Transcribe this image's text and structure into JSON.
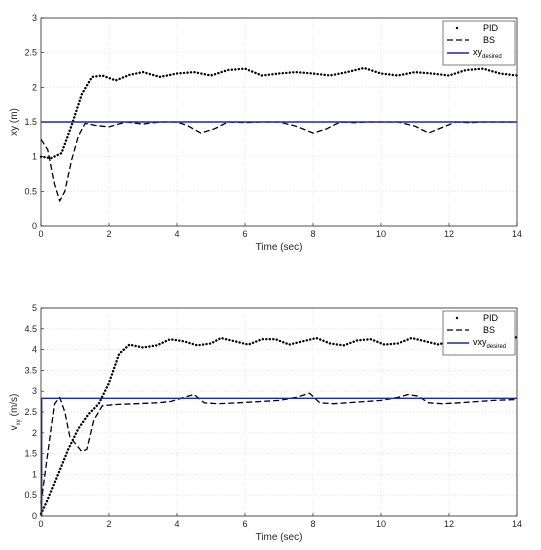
{
  "chart_data": [
    {
      "type": "line",
      "xlabel": "Time (sec)",
      "ylabel": "xy (m)",
      "xlim": [
        0,
        14
      ],
      "ylim": [
        0,
        3
      ],
      "xticks": [
        "0",
        "2",
        "4",
        "6",
        "8",
        "10",
        "12",
        "14"
      ],
      "yticks": [
        "0",
        "0.5",
        "1",
        "1.5",
        "2",
        "2.5",
        "3"
      ],
      "grid": true,
      "legend_position": "top-right",
      "legend": {
        "pid": "PID",
        "bs": "BS",
        "desired_main": "xy",
        "desired_sub": "desired"
      },
      "series": [
        {
          "name": "PID",
          "style": "dotted",
          "color": "#000000",
          "x": [
            0,
            0.3,
            0.6,
            0.9,
            1.2,
            1.5,
            1.8,
            2.2,
            2.6,
            3.0,
            3.5,
            4.0,
            4.5,
            5.0,
            5.5,
            6.0,
            6.5,
            7.0,
            7.5,
            8.0,
            8.5,
            9.0,
            9.5,
            10.0,
            10.5,
            11.0,
            11.5,
            12.0,
            12.5,
            13.0,
            13.5,
            14.0
          ],
          "y": [
            1.0,
            0.98,
            1.05,
            1.45,
            1.9,
            2.15,
            2.17,
            2.1,
            2.18,
            2.22,
            2.15,
            2.2,
            2.22,
            2.17,
            2.25,
            2.27,
            2.17,
            2.2,
            2.22,
            2.2,
            2.17,
            2.22,
            2.28,
            2.2,
            2.17,
            2.22,
            2.2,
            2.17,
            2.25,
            2.27,
            2.2,
            2.17
          ]
        },
        {
          "name": "BS",
          "style": "dashed",
          "color": "#000000",
          "x": [
            0,
            0.2,
            0.4,
            0.55,
            0.7,
            0.9,
            1.1,
            1.3,
            1.6,
            2.0,
            2.5,
            3.0,
            3.5,
            4.0,
            4.3,
            4.7,
            5.1,
            5.5,
            6.0,
            6.5,
            7.0,
            7.5,
            8.0,
            8.4,
            8.8,
            9.2,
            9.6,
            10.0,
            10.5,
            11.0,
            11.4,
            11.8,
            12.2,
            12.6,
            13.0,
            13.5,
            14.0
          ],
          "y": [
            1.25,
            1.1,
            0.6,
            0.36,
            0.5,
            0.95,
            1.3,
            1.48,
            1.45,
            1.43,
            1.5,
            1.47,
            1.5,
            1.5,
            1.45,
            1.34,
            1.4,
            1.5,
            1.49,
            1.5,
            1.5,
            1.44,
            1.34,
            1.4,
            1.5,
            1.49,
            1.5,
            1.5,
            1.5,
            1.44,
            1.34,
            1.42,
            1.5,
            1.49,
            1.5,
            1.5,
            1.5
          ]
        },
        {
          "name": "xy_desired",
          "style": "solid",
          "color": "#1f2a9c",
          "x": [
            0,
            14
          ],
          "y": [
            1.5,
            1.5
          ]
        }
      ]
    },
    {
      "type": "line",
      "xlabel": "Time (sec)",
      "ylabel_main": "v",
      "ylabel_sub": "xy",
      "ylabel_unit": "(m/s)",
      "xlim": [
        0,
        14
      ],
      "ylim": [
        0,
        5
      ],
      "xticks": [
        "0",
        "2",
        "4",
        "6",
        "8",
        "10",
        "12",
        "14"
      ],
      "yticks": [
        "0",
        "0.5",
        "1",
        "1.5",
        "2",
        "2.5",
        "3",
        "3.5",
        "4",
        "4.5",
        "5"
      ],
      "grid": true,
      "legend_position": "top-right",
      "legend": {
        "pid": "PID",
        "bs": "BS",
        "desired_main": "vxy",
        "desired_sub": "desired"
      },
      "series": [
        {
          "name": "PID",
          "style": "dotted",
          "color": "#000000",
          "x": [
            0,
            0.2,
            0.5,
            0.8,
            1.1,
            1.4,
            1.7,
            2.0,
            2.3,
            2.6,
            3.0,
            3.4,
            3.8,
            4.2,
            4.6,
            5.0,
            5.3,
            5.7,
            6.1,
            6.5,
            6.9,
            7.3,
            7.7,
            8.1,
            8.5,
            8.9,
            9.3,
            9.7,
            10.1,
            10.5,
            10.9,
            11.3,
            11.7,
            12.1,
            12.5,
            12.9,
            13.3,
            13.7,
            14.0
          ],
          "y": [
            0.05,
            0.4,
            1.0,
            1.6,
            2.1,
            2.45,
            2.7,
            3.2,
            3.9,
            4.12,
            4.05,
            4.1,
            4.25,
            4.2,
            4.1,
            4.15,
            4.28,
            4.2,
            4.12,
            4.25,
            4.25,
            4.12,
            4.2,
            4.28,
            4.15,
            4.1,
            4.22,
            4.25,
            4.12,
            4.15,
            4.28,
            4.2,
            4.12,
            4.25,
            4.25,
            4.12,
            4.2,
            4.25,
            4.3
          ]
        },
        {
          "name": "BS",
          "style": "dashed",
          "color": "#000000",
          "x": [
            0,
            0.2,
            0.4,
            0.55,
            0.7,
            0.85,
            1.0,
            1.2,
            1.35,
            1.55,
            1.8,
            2.2,
            2.8,
            3.4,
            3.8,
            4.2,
            4.5,
            4.8,
            5.2,
            5.8,
            6.4,
            7.0,
            7.5,
            7.9,
            8.2,
            8.6,
            9.0,
            9.5,
            10.0,
            10.5,
            10.8,
            11.1,
            11.4,
            11.8,
            12.3,
            12.8,
            13.3,
            14.0
          ],
          "y": [
            0.3,
            1.5,
            2.7,
            2.85,
            2.5,
            1.9,
            1.75,
            1.55,
            1.6,
            2.3,
            2.65,
            2.68,
            2.7,
            2.72,
            2.75,
            2.85,
            2.92,
            2.72,
            2.7,
            2.72,
            2.75,
            2.78,
            2.85,
            2.95,
            2.72,
            2.7,
            2.72,
            2.75,
            2.78,
            2.85,
            2.92,
            2.88,
            2.72,
            2.7,
            2.72,
            2.75,
            2.78,
            2.8
          ]
        },
        {
          "name": "vxy_desired",
          "style": "solid",
          "color": "#1f2a9c",
          "x": [
            0,
            0.02,
            0.02,
            14
          ],
          "y": [
            0,
            0,
            2.83,
            2.83
          ]
        }
      ]
    }
  ]
}
